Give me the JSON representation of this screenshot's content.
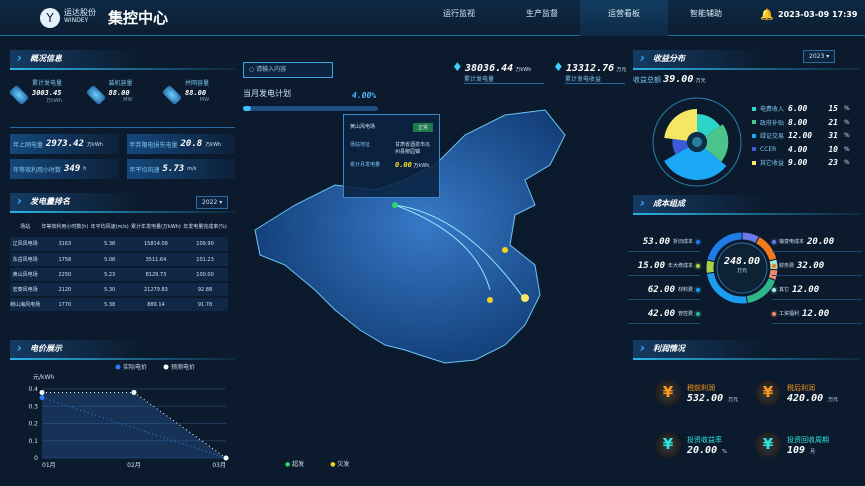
{
  "header": {
    "brand_cn": "运达股份",
    "brand_en": "WINDEY",
    "title": "集控中心",
    "nav": [
      "运行监视",
      "生产监督",
      "运营看板",
      "智能辅助"
    ],
    "active_nav": "运营看板",
    "datetime": "2023-03-09 17:39"
  },
  "overview": {
    "title": "概况信息",
    "stats": [
      {
        "label": "累计发电量",
        "value": "3003.45",
        "unit": "万kWh",
        "icon": "building-icon"
      },
      {
        "label": "装机容量",
        "value": "88.00",
        "unit": "MW",
        "icon": "gear-icon"
      },
      {
        "label": "并网容量",
        "value": "88.00",
        "unit": "MW",
        "icon": "snowflake-icon"
      }
    ],
    "kpis": [
      {
        "label": "年上网电量",
        "value": "2973.42",
        "unit": "万kWh"
      },
      {
        "label": "年弃限电损失电量",
        "value": "20.8",
        "unit": "万kWh"
      },
      {
        "label": "年等效利用小时数",
        "value": "349",
        "unit": "h"
      },
      {
        "label": "年平均风速",
        "value": "5.73",
        "unit": "m/s"
      }
    ]
  },
  "ranking": {
    "title": "发电量排名",
    "year": "2022",
    "columns": [
      "场站",
      "年等效利用小时数(h)",
      "年平均风速(m/s)",
      "累计年发电量(万kWh)",
      "年发电量完成率(%)"
    ],
    "rows": [
      [
        "辽风风电场",
        "3163",
        "5.38",
        "15814.09",
        "109.90"
      ],
      [
        "东岳风电场",
        "1758",
        "5.08",
        "3511.64",
        "101.23"
      ],
      [
        "黄山风电场",
        "2250",
        "5.23",
        "8129.73",
        "100.00"
      ],
      [
        "宏泰风电场",
        "2120",
        "5.30",
        "21279.83",
        "92.88"
      ],
      [
        "崂山海风电场",
        "1770",
        "5.38",
        "889.14",
        "91.78"
      ]
    ]
  },
  "price": {
    "title": "电价展示"
  },
  "chart_data": {
    "type": "line",
    "ylabel": "元/kWh",
    "ylim": [
      0,
      0.4
    ],
    "yticks": [
      "0",
      "0.1",
      "0.2",
      "0.3",
      "0.4"
    ],
    "categories": [
      "01月",
      "02月",
      "03月"
    ],
    "series": [
      {
        "name": "实际电价",
        "color": "#2f7df6",
        "values": [
          0.35,
          null,
          0
        ]
      },
      {
        "name": "预测电价",
        "color": "#ffffff",
        "values": [
          0.38,
          0.38,
          0
        ]
      }
    ]
  },
  "center": {
    "search_placeholder": "请输入内容",
    "plan_label": "当月发电计划",
    "plan_percent": "4.00%",
    "plan_progress": 0.04,
    "total_gen": {
      "value": "38036.44",
      "unit": "万kWh",
      "label": "累计发电量"
    },
    "total_rev": {
      "value": "13312.76",
      "unit": "万元",
      "label": "累计发电收益"
    },
    "popup": {
      "station": "黄山风电场",
      "status": "正常",
      "addr_label": "场站地址",
      "addr": "甘肃省酒泉市瓜州县柳园镇",
      "month_label": "累计月发电量",
      "month_value": "0.00",
      "month_unit": "万kWh"
    },
    "legend": [
      {
        "label": "超发",
        "color": "#2fd46a"
      },
      {
        "label": "欠发",
        "color": "#f5d31d"
      }
    ]
  },
  "revenue": {
    "title": "收益分布",
    "year": "2023",
    "total_label": "收益总额",
    "total": "39.00",
    "unit": "万元",
    "items": [
      {
        "label": "电费收入",
        "value": "6.00",
        "pct": "15",
        "color": "#2dd4c8"
      },
      {
        "label": "政府补贴",
        "value": "8.00",
        "pct": "21",
        "color": "#4cc38a"
      },
      {
        "label": "绿证交易",
        "value": "12.00",
        "pct": "31",
        "color": "#1aa7f5"
      },
      {
        "label": "CCER",
        "value": "4.00",
        "pct": "10",
        "color": "#3b5bdb"
      },
      {
        "label": "其它收益",
        "value": "9.00",
        "pct": "23",
        "color": "#f5e663"
      }
    ]
  },
  "cost": {
    "title": "成本组成",
    "total": "248.00",
    "unit": "万元",
    "left": [
      {
        "label": "折旧成本",
        "value": "53.00",
        "color": "#1e7be8"
      },
      {
        "label": "年大修成本",
        "value": "15.00",
        "color": "#a8d24a"
      },
      {
        "label": "材料费",
        "value": "62.00",
        "color": "#1a9cf0"
      },
      {
        "label": "管控费",
        "value": "42.00",
        "color": "#2fb58a"
      }
    ],
    "right": [
      {
        "label": "输变电成本",
        "value": "20.00",
        "color": "#6a78e8"
      },
      {
        "label": "财务费",
        "value": "32.00",
        "color": "#f07d1a"
      },
      {
        "label": "其它",
        "value": "12.00",
        "color": "#9ef0e0"
      },
      {
        "label": "工资福利",
        "value": "12.00",
        "color": "#e88a70"
      }
    ]
  },
  "profit": {
    "title": "利润情况",
    "items": [
      {
        "label": "税前利润",
        "value": "532.00",
        "unit": "万元",
        "color": "#ff9a1a"
      },
      {
        "label": "税后利润",
        "value": "420.00",
        "unit": "万元",
        "color": "#ff9a1a"
      },
      {
        "label": "投资收益率",
        "value": "20.00",
        "unit": "%",
        "color": "#2ee6e0"
      },
      {
        "label": "投资回收周期",
        "value": "109",
        "unit": "月",
        "color": "#2ee6e0"
      }
    ]
  }
}
